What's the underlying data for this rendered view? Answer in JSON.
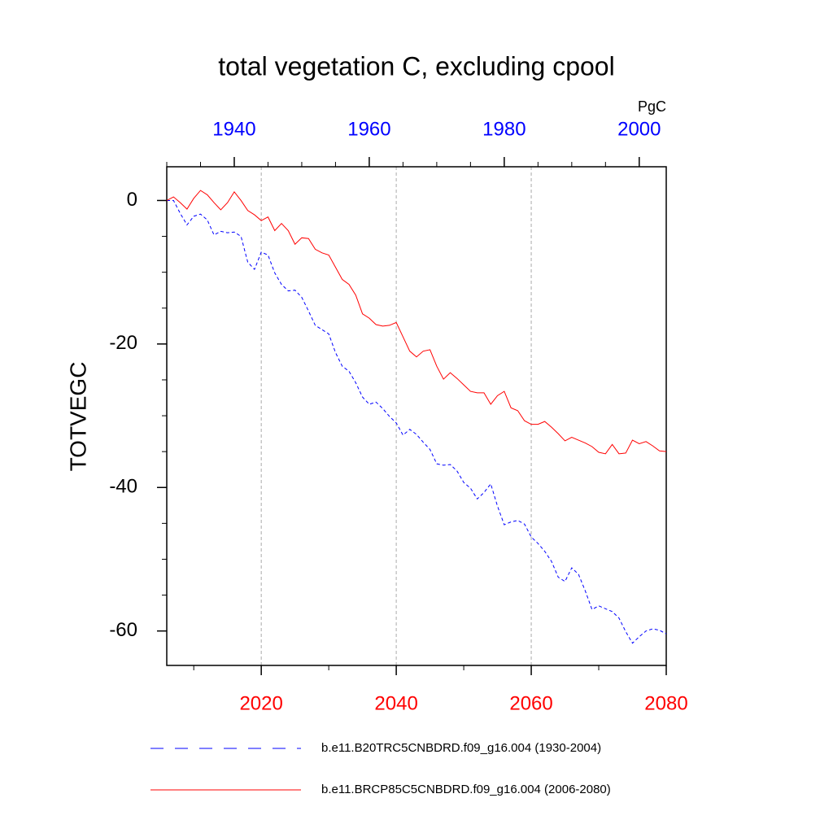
{
  "chart_data": {
    "type": "line",
    "title": "total vegetation C, excluding cpool",
    "y_label": "TOTVEGC",
    "units": "PgC",
    "xlim": [
      2006,
      2080
    ],
    "xticks": [
      2020,
      2040,
      2060,
      2080
    ],
    "xminorticks": [
      2010,
      2030,
      2050,
      2070
    ],
    "x2lim": [
      1930,
      2004
    ],
    "x2ticks": [
      1940,
      1960,
      1980,
      2000
    ],
    "x2minorticks": [
      1930,
      1935,
      1945,
      1950,
      1955,
      1965,
      1970,
      1975,
      1985,
      1990,
      1995
    ],
    "ylim": [
      -64.8,
      4.7
    ],
    "yticks": [
      -60,
      -40,
      -20,
      0
    ],
    "yminorticks": [
      -55,
      -50,
      -45,
      -35,
      -30,
      -25,
      -15,
      -10,
      -5
    ],
    "grid": true,
    "series": [
      {
        "name": "b.e11.B20TRC5CNBDRD.f09_g16.004 (1930-2004)",
        "color": "#0000ff",
        "dash": true,
        "axis": "x2",
        "x": [
          1930,
          1931,
          1932,
          1933,
          1934,
          1935,
          1936,
          1937,
          1938,
          1939,
          1940,
          1941,
          1942,
          1943,
          1944,
          1945,
          1946,
          1947,
          1948,
          1949,
          1950,
          1951,
          1952,
          1953,
          1954,
          1955,
          1956,
          1957,
          1958,
          1959,
          1960,
          1961,
          1962,
          1963,
          1964,
          1965,
          1966,
          1967,
          1968,
          1969,
          1970,
          1971,
          1972,
          1973,
          1974,
          1975,
          1976,
          1977,
          1978,
          1979,
          1980,
          1981,
          1982,
          1983,
          1984,
          1985,
          1986,
          1987,
          1988,
          1989,
          1990,
          1991,
          1992,
          1993,
          1994,
          1995,
          1996,
          1997,
          1998,
          1999,
          2000,
          2001,
          2002,
          2003,
          2004
        ],
        "values": [
          0,
          0,
          -1.8,
          -3.4,
          -2.2,
          -1.9,
          -2.7,
          -4.8,
          -4.3,
          -4.5,
          -4.4,
          -5.0,
          -8.6,
          -9.6,
          -7.2,
          -7.6,
          -10.1,
          -11.7,
          -12.6,
          -12.5,
          -13.5,
          -15.4,
          -17.4,
          -18.0,
          -18.6,
          -21.2,
          -23.1,
          -23.8,
          -25.4,
          -27.4,
          -28.4,
          -28.1,
          -29.0,
          -30.1,
          -31.0,
          -32.7,
          -31.9,
          -32.6,
          -33.7,
          -34.7,
          -36.7,
          -36.9,
          -36.8,
          -37.7,
          -39.3,
          -40.1,
          -41.6,
          -40.7,
          -39.5,
          -42.6,
          -45.2,
          -44.8,
          -44.6,
          -45.1,
          -46.9,
          -47.8,
          -48.9,
          -50.3,
          -52.5,
          -53.1,
          -51.2,
          -52.1,
          -54.4,
          -57.0,
          -56.5,
          -56.9,
          -57.3,
          -58.2,
          -60.1,
          -61.7,
          -60.8,
          -60.0,
          -59.7,
          -59.9,
          -60.4
        ]
      },
      {
        "name": "b.e11.BRCP85C5CNBDRD.f09_g16.004 (2006-2080)",
        "color": "#ff0000",
        "dash": false,
        "axis": "x",
        "x": [
          2006,
          2007,
          2008,
          2009,
          2010,
          2011,
          2012,
          2013,
          2014,
          2015,
          2016,
          2017,
          2018,
          2019,
          2020,
          2021,
          2022,
          2023,
          2024,
          2025,
          2026,
          2027,
          2028,
          2029,
          2030,
          2031,
          2032,
          2033,
          2034,
          2035,
          2036,
          2037,
          2038,
          2039,
          2040,
          2041,
          2042,
          2043,
          2044,
          2045,
          2046,
          2047,
          2048,
          2049,
          2050,
          2051,
          2052,
          2053,
          2054,
          2055,
          2056,
          2057,
          2058,
          2059,
          2060,
          2061,
          2062,
          2063,
          2064,
          2065,
          2066,
          2067,
          2068,
          2069,
          2070,
          2071,
          2072,
          2073,
          2074,
          2075,
          2076,
          2077,
          2078,
          2079,
          2080
        ],
        "values": [
          0,
          0.5,
          -0.3,
          -1.2,
          0.3,
          1.4,
          0.8,
          -0.3,
          -1.3,
          -0.3,
          1.2,
          0,
          -1.4,
          -2.0,
          -2.8,
          -2.3,
          -4.2,
          -3.2,
          -4.2,
          -6.1,
          -5.2,
          -5.3,
          -6.8,
          -7.3,
          -7.6,
          -9.3,
          -11.0,
          -11.7,
          -13.2,
          -15.8,
          -16.4,
          -17.3,
          -17.5,
          -17.4,
          -17.0,
          -19.0,
          -21.0,
          -21.8,
          -21.0,
          -20.8,
          -23.1,
          -24.9,
          -24.0,
          -24.8,
          -25.7,
          -26.6,
          -26.8,
          -26.8,
          -28.4,
          -27.2,
          -26.6,
          -28.9,
          -29.3,
          -30.7,
          -31.2,
          -31.2,
          -30.8,
          -31.6,
          -32.5,
          -33.5,
          -33.0,
          -33.4,
          -33.8,
          -34.3,
          -35.1,
          -35.3,
          -34.0,
          -35.3,
          -35.2,
          -33.4,
          -33.9,
          -33.6,
          -34.2,
          -34.9,
          -35.0
        ]
      }
    ]
  }
}
